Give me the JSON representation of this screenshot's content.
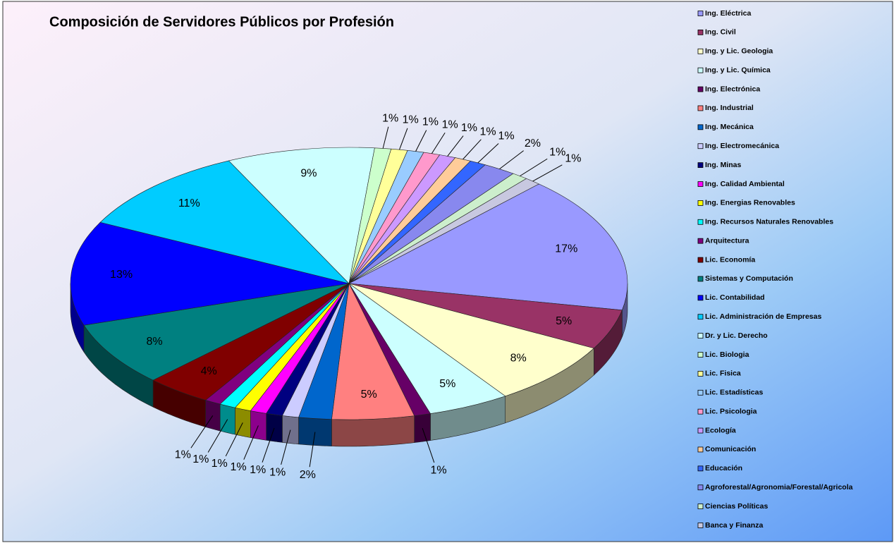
{
  "chart_data": {
    "type": "pie",
    "title": "Composición de Servidores Públicos por Profesión",
    "categories": [
      "Ing. Eléctrica",
      "Ing. Civil",
      "Ing. y Lic. Geologia",
      "Ing. y Lic. Química",
      "Ing. Electrónica",
      "Ing. Industrial",
      "Ing. Mecánica",
      "Ing. Electromecánica",
      "Ing. Minas",
      "Ing. Calidad Ambiental",
      "Ing. Energias Renovables",
      "Ing. Recursos Naturales Renovables",
      "Arquitectura",
      "Lic. Economía",
      "Sistemas y Computación",
      "Lic. Contabilidad",
      "Lic. Administración de Empresas",
      "Dr. y Lic. Derecho",
      "Lic. Biologia",
      "Lic. Fisica",
      "Lic. Estadísticas",
      "Lic. Psicologia",
      "Ecología",
      "Comunicación",
      "Educación",
      "Agroforestal/Agronomia/Forestal/Agricola",
      "Ciencias Políticas",
      "Banca y Finanza"
    ],
    "values": [
      17,
      5,
      8,
      5,
      1,
      5,
      2,
      1,
      1,
      1,
      1,
      1,
      1,
      4,
      8,
      13,
      11,
      9,
      1,
      1,
      1,
      1,
      1,
      1,
      1,
      2,
      1,
      1
    ],
    "value_labels": [
      "17%",
      "5%",
      "8%",
      "5%",
      "1%",
      "5%",
      "2%",
      "1%",
      "1%",
      "1%",
      "1%",
      "1%",
      "1%",
      "4%",
      "8%",
      "13%",
      "11%",
      "9%",
      "1%",
      "1%",
      "1%",
      "1%",
      "1%",
      "1%",
      "1%",
      "2%",
      "1%",
      "1%"
    ],
    "colors": [
      "#9999FF",
      "#993366",
      "#FFFFCC",
      "#CCFFFF",
      "#660066",
      "#FF8080",
      "#0066CC",
      "#CCCCFF",
      "#000080",
      "#FF00FF",
      "#FFFF00",
      "#00FFFF",
      "#800080",
      "#800000",
      "#008080",
      "#0000FF",
      "#00CCFF",
      "#CCFFFF",
      "#CCFFCC",
      "#FFFF99",
      "#99CCFF",
      "#FF99CC",
      "#CC99FF",
      "#FFCC99",
      "#3366FF",
      "#8888EE",
      "#CCEECC",
      "#C8C8E0"
    ],
    "legend": "right"
  }
}
